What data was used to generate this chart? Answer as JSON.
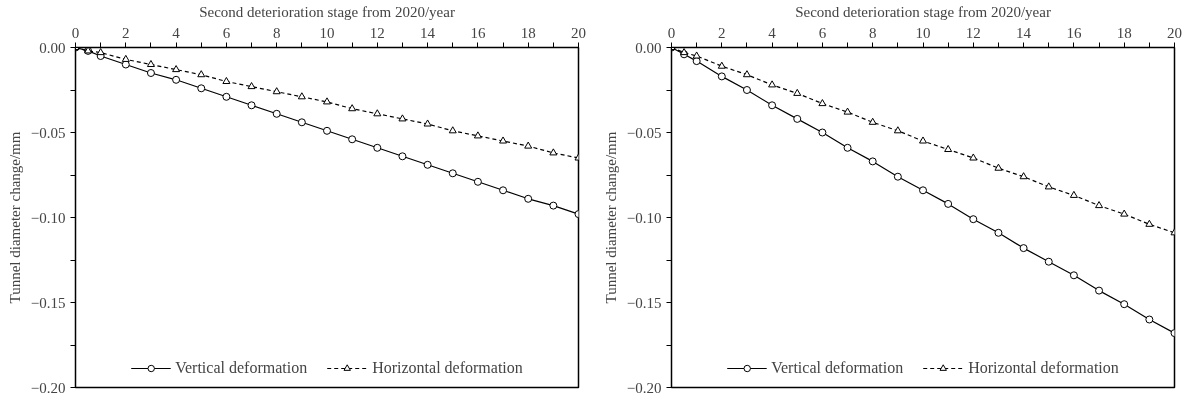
{
  "chart_data": [
    {
      "type": "line",
      "xlabel": "Second deterioration stage from 2020/year",
      "ylabel": "Tunnel diameter change/mm",
      "x": [
        0,
        0.5,
        1,
        2,
        3,
        4,
        5,
        6,
        7,
        8,
        9,
        10,
        11,
        12,
        13,
        14,
        15,
        16,
        17,
        18,
        19,
        20
      ],
      "series": [
        {
          "name": "Vertical deformation",
          "color": "#000000",
          "marker": "circle",
          "line_style": "solid",
          "values": [
            0,
            -0.002,
            -0.005,
            -0.01,
            -0.015,
            -0.019,
            -0.024,
            -0.029,
            -0.034,
            -0.039,
            -0.044,
            -0.049,
            -0.054,
            -0.059,
            -0.064,
            -0.069,
            -0.074,
            -0.079,
            -0.084,
            -0.089,
            -0.093,
            -0.098
          ]
        },
        {
          "name": "Horizontal deformation",
          "color": "#000000",
          "marker": "triangle",
          "line_style": "dotted",
          "values": [
            0,
            -0.002,
            -0.003,
            -0.007,
            -0.01,
            -0.013,
            -0.016,
            -0.02,
            -0.023,
            -0.026,
            -0.029,
            -0.032,
            -0.036,
            -0.039,
            -0.042,
            -0.045,
            -0.049,
            -0.052,
            -0.055,
            -0.058,
            -0.062,
            -0.065
          ]
        }
      ],
      "xlim": [
        0,
        20
      ],
      "xticks": [
        0,
        {
          "value": 1,
          "label": null
        },
        2,
        {
          "value": 3,
          "label": null
        },
        4,
        {
          "value": 5,
          "label": null
        },
        6,
        {
          "value": 7,
          "label": null
        },
        8,
        {
          "value": 9,
          "label": null
        },
        10,
        {
          "value": 11,
          "label": null
        },
        12,
        {
          "value": 13,
          "label": null
        },
        14,
        {
          "value": 15,
          "label": null
        },
        16,
        {
          "value": 17,
          "label": null
        },
        18,
        {
          "value": 19,
          "label": null
        },
        20
      ],
      "ylim": [
        -0.2,
        0
      ],
      "yticks": [
        {
          "value": 0,
          "label": "0.00"
        },
        {
          "value": -0.025,
          "label": null
        },
        {
          "value": -0.05,
          "label": "−0.05"
        },
        {
          "value": -0.075,
          "label": null
        },
        {
          "value": -0.1,
          "label": "−0.10"
        },
        {
          "value": -0.125,
          "label": null
        },
        {
          "value": -0.15,
          "label": "−0.15"
        },
        {
          "value": -0.175,
          "label": null
        },
        {
          "value": -0.2,
          "label": "−0.20"
        }
      ],
      "legend": "bottom",
      "grid": false
    },
    {
      "type": "line",
      "xlabel": "Second deterioration stage from 2020/year",
      "ylabel": "Tunnel diameter change/mm",
      "x": [
        0,
        0.5,
        1,
        2,
        3,
        4,
        5,
        6,
        7,
        8,
        9,
        10,
        11,
        12,
        13,
        14,
        15,
        16,
        17,
        18,
        19,
        20
      ],
      "series": [
        {
          "name": "Vertical deformation",
          "color": "#000000",
          "marker": "circle",
          "line_style": "solid",
          "values": [
            0,
            -0.004,
            -0.008,
            -0.017,
            -0.025,
            -0.034,
            -0.042,
            -0.05,
            -0.059,
            -0.067,
            -0.076,
            -0.084,
            -0.092,
            -0.101,
            -0.109,
            -0.118,
            -0.126,
            -0.134,
            -0.143,
            -0.151,
            -0.16,
            -0.168
          ]
        },
        {
          "name": "Horizontal deformation",
          "color": "#000000",
          "marker": "triangle",
          "line_style": "dotted",
          "values": [
            0,
            -0.003,
            -0.005,
            -0.011,
            -0.016,
            -0.022,
            -0.027,
            -0.033,
            -0.038,
            -0.044,
            -0.049,
            -0.055,
            -0.06,
            -0.065,
            -0.071,
            -0.076,
            -0.082,
            -0.087,
            -0.093,
            -0.098,
            -0.104,
            -0.109
          ]
        }
      ],
      "xlim": [
        0,
        20
      ],
      "xticks": [
        0,
        {
          "value": 1,
          "label": null
        },
        2,
        {
          "value": 3,
          "label": null
        },
        4,
        {
          "value": 5,
          "label": null
        },
        6,
        {
          "value": 7,
          "label": null
        },
        8,
        {
          "value": 9,
          "label": null
        },
        10,
        {
          "value": 11,
          "label": null
        },
        12,
        {
          "value": 13,
          "label": null
        },
        14,
        {
          "value": 15,
          "label": null
        },
        16,
        {
          "value": 17,
          "label": null
        },
        18,
        {
          "value": 19,
          "label": null
        },
        20
      ],
      "ylim": [
        -0.2,
        0
      ],
      "yticks": [
        {
          "value": 0,
          "label": "0.00"
        },
        {
          "value": -0.025,
          "label": null
        },
        {
          "value": -0.05,
          "label": "−0.05"
        },
        {
          "value": -0.075,
          "label": null
        },
        {
          "value": -0.1,
          "label": "−0.10"
        },
        {
          "value": -0.125,
          "label": null
        },
        {
          "value": -0.15,
          "label": "−0.15"
        },
        {
          "value": -0.175,
          "label": null
        },
        {
          "value": -0.2,
          "label": "−0.20"
        }
      ],
      "legend": "bottom",
      "grid": false
    }
  ]
}
